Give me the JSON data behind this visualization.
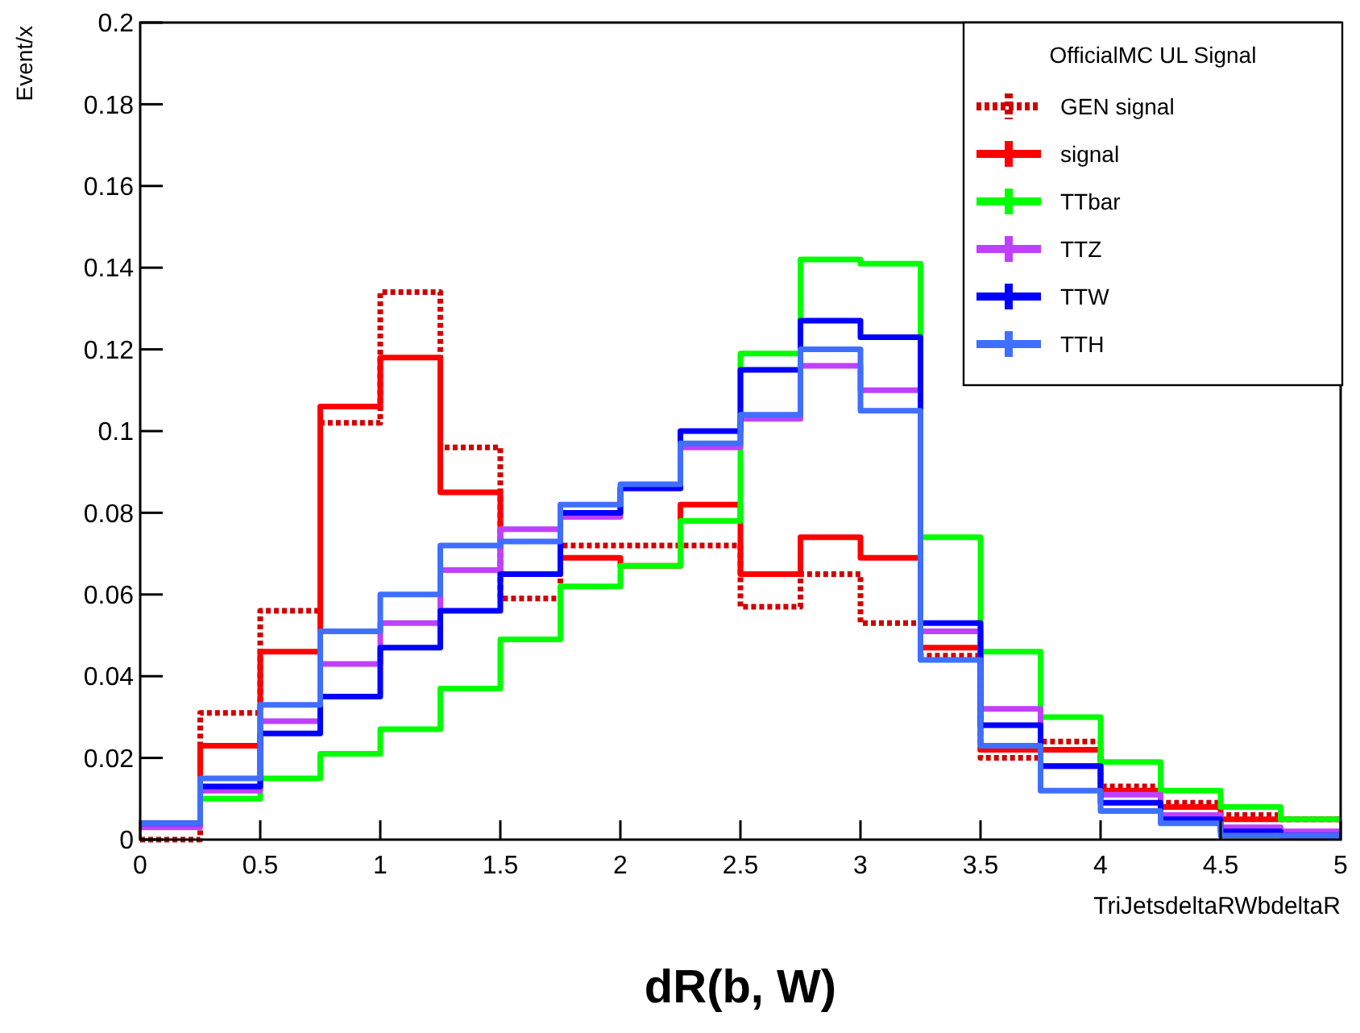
{
  "chart_data": {
    "type": "histogram",
    "ylabel": "Event/x",
    "xlabel": "TriJetsdeltaRWbdeltaR",
    "legend_title": "OfficialMC UL Signal",
    "annotations": [
      "dR(b, W)"
    ],
    "bins": [
      0,
      0.25,
      0.5,
      0.75,
      1,
      1.25,
      1.5,
      1.75,
      2,
      2.25,
      2.5,
      2.75,
      3,
      3.25,
      3.5,
      3.75,
      4,
      4.25,
      4.5,
      4.75,
      5
    ],
    "series": [
      {
        "name": "GEN signal",
        "color": "#d00000",
        "line_style": "dotted",
        "values": [
          0.0,
          0.031,
          0.056,
          0.102,
          0.134,
          0.096,
          0.059,
          0.072,
          0.072,
          0.072,
          0.057,
          0.065,
          0.053,
          0.045,
          0.02,
          0.024,
          0.013,
          0.009,
          0.006,
          0.005
        ]
      },
      {
        "name": "signal",
        "color": "#ff0000",
        "values": [
          0.004,
          0.023,
          0.046,
          0.106,
          0.118,
          0.085,
          0.065,
          0.069,
          0.067,
          0.082,
          0.065,
          0.074,
          0.069,
          0.047,
          0.022,
          0.022,
          0.012,
          0.008,
          0.005,
          0.005
        ]
      },
      {
        "name": "TTbar",
        "color": "#00ff00",
        "values": [
          0.004,
          0.01,
          0.015,
          0.021,
          0.027,
          0.037,
          0.049,
          0.062,
          0.067,
          0.078,
          0.119,
          0.142,
          0.141,
          0.074,
          0.046,
          0.03,
          0.019,
          0.012,
          0.008,
          0.005
        ]
      },
      {
        "name": "TTZ",
        "color": "#bf40ff",
        "values": [
          0.003,
          0.012,
          0.029,
          0.043,
          0.053,
          0.066,
          0.076,
          0.079,
          0.086,
          0.096,
          0.103,
          0.116,
          0.11,
          0.051,
          0.032,
          0.018,
          0.011,
          0.006,
          0.003,
          0.002
        ]
      },
      {
        "name": "TTW",
        "color": "#0000ff",
        "values": [
          0.004,
          0.013,
          0.026,
          0.035,
          0.047,
          0.056,
          0.065,
          0.08,
          0.086,
          0.1,
          0.115,
          0.127,
          0.123,
          0.053,
          0.028,
          0.018,
          0.009,
          0.005,
          0.002,
          0.001
        ]
      },
      {
        "name": "TTH",
        "color": "#3f6fff",
        "values": [
          0.004,
          0.015,
          0.033,
          0.051,
          0.06,
          0.072,
          0.073,
          0.082,
          0.087,
          0.097,
          0.104,
          0.12,
          0.105,
          0.044,
          0.023,
          0.012,
          0.007,
          0.004,
          0.001,
          0.001
        ]
      }
    ],
    "xlim": [
      0,
      5
    ],
    "xticks": [
      0,
      0.5,
      1,
      1.5,
      2,
      2.5,
      3,
      3.5,
      4,
      4.5,
      5
    ],
    "ylim": [
      0,
      0.2
    ],
    "yticks": [
      0,
      0.02,
      0.04,
      0.06,
      0.08,
      0.1,
      0.12,
      0.14,
      0.16,
      0.18,
      0.2
    ],
    "legend": "top right",
    "grid": false
  }
}
